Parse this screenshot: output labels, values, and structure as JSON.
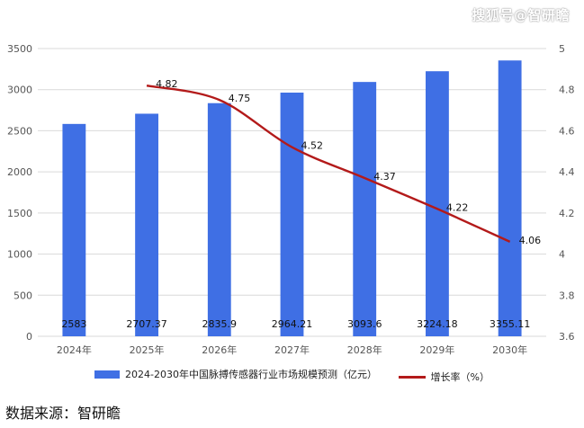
{
  "watermark": "搜狐号@智研瞻",
  "source": "数据来源：智研瞻",
  "colors": {
    "bar": "#3f6fe4",
    "line": "#b31a1a",
    "grid": "#d9d9d9",
    "axis_text": "#555555"
  },
  "chart_data": {
    "type": "bar",
    "categories": [
      "2024年",
      "2025年",
      "2026年",
      "2027年",
      "2028年",
      "2029年",
      "2030年"
    ],
    "series": [
      {
        "name": "2024-2030年中国脉搏传感器行业市场规模预测（亿元）",
        "type": "bar",
        "axis": "left",
        "values": [
          2583,
          2707.37,
          2835.9,
          2964.21,
          3093.6,
          3224.18,
          3355.11
        ],
        "labels": [
          "2583",
          "2707.37",
          "2835.9",
          "2964.21",
          "3093.6",
          "3224.18",
          "3355.11"
        ]
      },
      {
        "name": "增长率（%）",
        "type": "line",
        "axis": "right",
        "values": [
          null,
          4.82,
          4.75,
          4.52,
          4.37,
          4.22,
          4.06
        ],
        "labels": [
          "",
          "4.82",
          "4.75",
          "4.52",
          "4.37",
          "4.22",
          "4.06"
        ]
      }
    ],
    "y_left": {
      "min": 0,
      "max": 3500,
      "ticks": [
        "0",
        "500",
        "1000",
        "1500",
        "2000",
        "2500",
        "3000",
        "3500"
      ]
    },
    "y_right": {
      "min": 3.6,
      "max": 5,
      "ticks": [
        "3.6",
        "3.8",
        "4",
        "4.2",
        "4.4",
        "4.6",
        "4.8",
        "5"
      ]
    },
    "grid": true,
    "legend": "bottom"
  }
}
